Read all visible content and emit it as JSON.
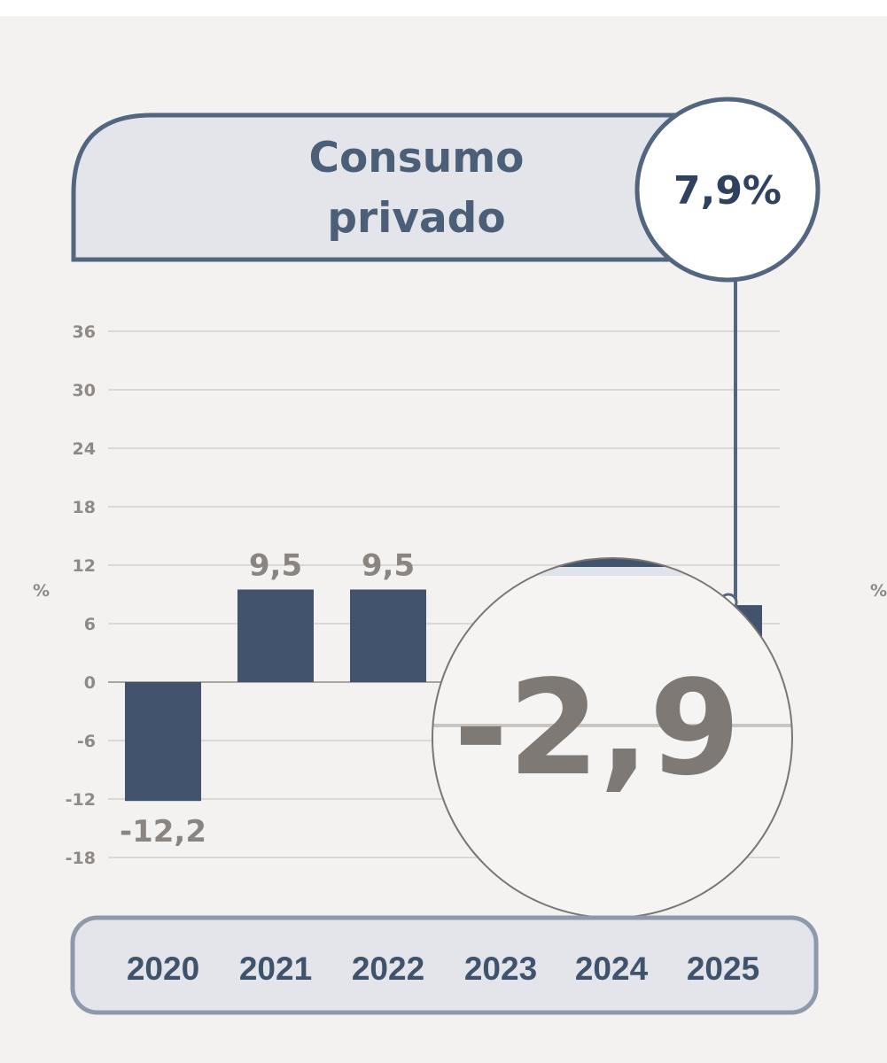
{
  "chart_data": {
    "type": "bar",
    "title": "Consumo privado",
    "title_lines": [
      "Consumo",
      "privado"
    ],
    "highlight_value": "7,9%",
    "unit": "%",
    "categories": [
      "2020",
      "2021",
      "2022",
      "2023",
      "2024",
      "2025"
    ],
    "values": [
      -12.2,
      9.5,
      9.5,
      -2.9,
      null,
      7.9
    ],
    "data_labels": [
      "-12,2",
      "9,5",
      "9,5",
      "-2,9",
      "",
      "7,9%"
    ],
    "y_ticks": [
      36,
      30,
      24,
      18,
      12,
      6,
      0,
      -6,
      -12,
      -18
    ],
    "ylim": [
      -18,
      36
    ],
    "grid": true,
    "zoomed_label": "-2,9",
    "colors": {
      "bar": "#42546d",
      "frame": "#52667f",
      "title_fill": "#e3e5ea",
      "background": "#f3f2f0"
    }
  }
}
